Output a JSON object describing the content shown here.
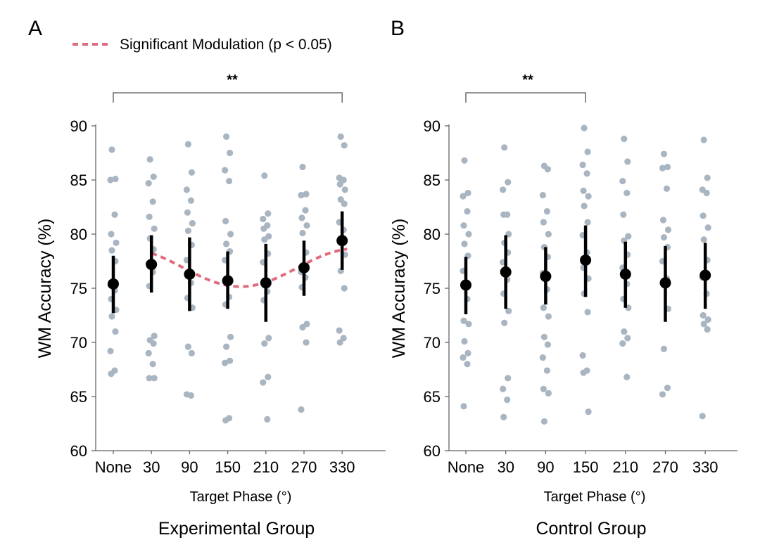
{
  "legend": {
    "label": "Significant Modulation (p < 0.05)",
    "color": "#e06c7d"
  },
  "colors": {
    "points": "#a9b5c1",
    "means": "#000000"
  },
  "chart_data": [
    {
      "type": "scatter",
      "panel_letter": "A",
      "title": "Experimental Group",
      "xlabel": "Target Phase (°)",
      "ylabel": "WM Accuracy (%)",
      "categories": [
        "None",
        "30",
        "90",
        "150",
        "210",
        "270",
        "330"
      ],
      "ylim": [
        60,
        90
      ],
      "yticks": [
        60,
        65,
        70,
        75,
        80,
        85,
        90
      ],
      "grid": false,
      "significance": {
        "label": "**",
        "from": "None",
        "to": "330"
      },
      "means": [
        75.4,
        77.2,
        76.3,
        75.7,
        75.5,
        76.9,
        79.4
      ],
      "error_low": [
        72.7,
        74.6,
        72.9,
        73.1,
        71.9,
        74.3,
        76.7
      ],
      "error_high": [
        78.0,
        79.9,
        79.7,
        78.4,
        79.1,
        79.4,
        82.1
      ],
      "points": [
        [
          87.8,
          85.1,
          85.0,
          81.8,
          80.0,
          79.2,
          78.5,
          77.5,
          75.3,
          74.8,
          74.0,
          73.0,
          72.4,
          71.0,
          69.2,
          67.4,
          67.1
        ],
        [
          86.9,
          85.3,
          84.7,
          83.0,
          81.6,
          80.5,
          79.6,
          78.6,
          77.3,
          76.5,
          75.2,
          70.6,
          70.2,
          69.9,
          69.0,
          68.0,
          66.7,
          66.7
        ],
        [
          88.3,
          85.7,
          84.1,
          83.1,
          82.0,
          81.0,
          80.3,
          79.0,
          77.6,
          75.5,
          74.1,
          73.2,
          69.6,
          69.0,
          65.2,
          65.1
        ],
        [
          89.0,
          87.5,
          85.9,
          84.9,
          81.2,
          80.0,
          79.1,
          78.4,
          77.6,
          74.2,
          73.5,
          70.5,
          69.6,
          68.3,
          68.1,
          63.0,
          62.8
        ],
        [
          85.4,
          81.9,
          81.4,
          80.8,
          80.5,
          79.8,
          79.5,
          78.2,
          77.4,
          74.7,
          73.9,
          70.4,
          69.9,
          66.8,
          66.3,
          62.9
        ],
        [
          86.2,
          83.7,
          83.6,
          82.2,
          81.5,
          80.8,
          80.1,
          78.3,
          76.5,
          76.0,
          75.1,
          71.7,
          71.4,
          70.0,
          63.8
        ],
        [
          89.0,
          88.2,
          85.2,
          85.0,
          84.6,
          84.1,
          83.2,
          82.8,
          81.1,
          80.4,
          79.3,
          78.1,
          76.6,
          75.0,
          71.1,
          70.4,
          70.0
        ]
      ],
      "modulation_fit": {
        "x_start": 30,
        "x_end": 340,
        "mean": 76.9,
        "amplitude": 1.75,
        "peak_phase": 350
      }
    },
    {
      "type": "scatter",
      "panel_letter": "B",
      "title": "Control Group",
      "xlabel": "Target Phase (°)",
      "ylabel": "WM Accuracy (%)",
      "categories": [
        "None",
        "30",
        "90",
        "150",
        "210",
        "270",
        "330"
      ],
      "ylim": [
        60,
        90
      ],
      "yticks": [
        60,
        65,
        70,
        75,
        80,
        85,
        90
      ],
      "grid": false,
      "significance": {
        "label": "**",
        "from": "None",
        "to": "150"
      },
      "means": [
        75.3,
        76.5,
        76.1,
        77.6,
        76.3,
        75.5,
        76.2
      ],
      "error_low": [
        72.6,
        73.1,
        73.5,
        74.2,
        73.2,
        71.9,
        73.1
      ],
      "error_high": [
        77.9,
        79.9,
        78.8,
        80.8,
        79.3,
        78.9,
        79.2
      ],
      "points": [
        [
          86.8,
          83.8,
          83.5,
          82.1,
          80.8,
          80.0,
          79.1,
          78.0,
          76.6,
          74.0,
          72.0,
          71.7,
          70.1,
          69.0,
          68.6,
          68.0,
          64.1
        ],
        [
          88.0,
          84.8,
          84.1,
          81.8,
          81.8,
          80.0,
          79.2,
          78.3,
          77.4,
          75.8,
          74.5,
          72.9,
          71.8,
          66.7,
          65.7,
          64.7,
          63.1
        ],
        [
          86.3,
          86.0,
          83.6,
          82.1,
          81.1,
          80.0,
          78.8,
          77.9,
          76.4,
          74.9,
          73.2,
          72.4,
          70.5,
          69.8,
          68.6,
          67.4,
          65.7,
          65.3,
          62.7
        ],
        [
          89.8,
          87.6,
          86.4,
          85.6,
          84.0,
          83.5,
          82.6,
          81.1,
          79.9,
          78.3,
          76.9,
          75.9,
          74.5,
          72.8,
          68.8,
          67.4,
          67.2,
          63.6
        ],
        [
          88.8,
          86.7,
          84.9,
          83.8,
          81.8,
          79.8,
          79.4,
          78.1,
          76.9,
          75.4,
          74.0,
          73.2,
          71.0,
          70.4,
          69.9,
          66.8
        ],
        [
          87.4,
          86.2,
          86.1,
          84.2,
          81.3,
          80.4,
          79.7,
          78.8,
          77.5,
          75.9,
          75.5,
          73.1,
          69.4,
          65.8,
          65.2
        ],
        [
          88.7,
          85.2,
          84.1,
          83.8,
          81.7,
          80.6,
          79.5,
          77.6,
          76.0,
          74.5,
          72.5,
          72.1,
          71.7,
          71.2,
          63.2
        ]
      ]
    }
  ]
}
